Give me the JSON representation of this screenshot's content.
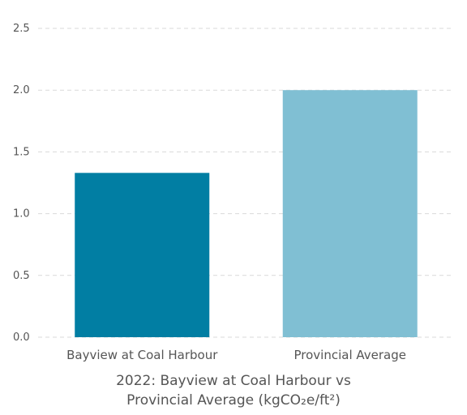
{
  "chart_data": {
    "type": "bar",
    "title_line1": "2022: Bayview at Coal Harbour vs",
    "title_line2": "Provincial Average (kgCO₂e/ft²)",
    "xlabel": "",
    "ylabel": "",
    "categories": [
      "Bayview at Coal Harbour",
      "Provincial Average"
    ],
    "values": [
      1.33,
      2.0
    ],
    "colors": [
      "#017ea3",
      "#80bfd3"
    ],
    "ylim": [
      0,
      2.5
    ],
    "yticks": [
      "0.0",
      "0.5",
      "1.0",
      "1.5",
      "2.0",
      "2.5"
    ],
    "grid": true,
    "legend": false
  }
}
